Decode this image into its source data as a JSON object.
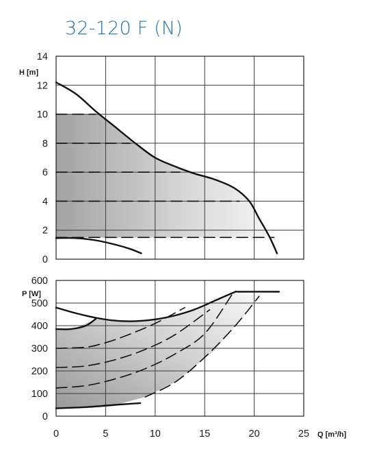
{
  "title": "32-120 F (N)",
  "title_color": "#1b75bb",
  "chart_data": [
    {
      "type": "line",
      "ylabel": "H [m]",
      "xlim": [
        0,
        25
      ],
      "ylim": [
        0,
        14
      ],
      "xticks": [
        0,
        5,
        10,
        15,
        20,
        25
      ],
      "yticks": [
        0,
        2,
        4,
        6,
        8,
        10,
        12,
        14
      ],
      "ytick_labels": [
        "0",
        "2",
        "4",
        "6",
        "8",
        "10",
        "12",
        "14"
      ],
      "grid": true,
      "shaded_region": "operating area",
      "series": [
        {
          "style": "solid",
          "x": [
            0,
            2,
            4,
            6,
            8,
            10,
            12,
            14,
            16,
            18,
            19.5,
            20.5,
            21.5,
            22.3
          ],
          "y": [
            12.2,
            11.4,
            10.2,
            9.1,
            8.0,
            7.0,
            6.4,
            5.9,
            5.5,
            4.9,
            4.0,
            2.8,
            1.6,
            0.4
          ]
        },
        {
          "style": "solid",
          "x": [
            0,
            2,
            4,
            6,
            7.5,
            8.6
          ],
          "y": [
            1.45,
            1.45,
            1.3,
            1.0,
            0.7,
            0.4
          ]
        },
        {
          "style": "dashed",
          "x": [
            0,
            4
          ],
          "y": [
            10,
            10
          ]
        },
        {
          "style": "dashed",
          "x": [
            0,
            7.5
          ],
          "y": [
            8,
            8
          ]
        },
        {
          "style": "dashed",
          "x": [
            0,
            12.5
          ],
          "y": [
            6,
            6
          ]
        },
        {
          "style": "dashed",
          "x": [
            0,
            18.5
          ],
          "y": [
            4,
            4
          ]
        },
        {
          "style": "dashed",
          "x": [
            0,
            22
          ],
          "y": [
            1.5,
            1.5
          ]
        }
      ]
    },
    {
      "type": "line",
      "xlabel": "Q [m³/h]",
      "ylabel": "P [W]",
      "xlim": [
        0,
        25
      ],
      "ylim": [
        0,
        600
      ],
      "xticks": [
        0,
        5,
        10,
        15,
        20,
        25
      ],
      "xtick_labels": [
        "0",
        "5",
        "10",
        "15",
        "20",
        "25"
      ],
      "yticks": [
        0,
        100,
        200,
        300,
        400,
        500,
        600
      ],
      "ytick_labels": [
        "0",
        "100",
        "200",
        "300",
        "400",
        "500",
        "600"
      ],
      "grid": true,
      "shaded_region": "operating area",
      "series": [
        {
          "style": "solid",
          "x": [
            0,
            2,
            4,
            6,
            8,
            10,
            12,
            14,
            16,
            18,
            18.5,
            22.5
          ],
          "y": [
            480,
            455,
            435,
            422,
            420,
            428,
            445,
            472,
            510,
            548,
            550,
            550
          ]
        },
        {
          "style": "solid",
          "x": [
            0,
            3,
            6,
            8.5
          ],
          "y": [
            35,
            40,
            50,
            58
          ]
        },
        {
          "style": "solid",
          "x": [
            0,
            1.5,
            3,
            4
          ],
          "y": [
            385,
            385,
            400,
            430
          ]
        },
        {
          "style": "dashed",
          "x": [
            0,
            3,
            5,
            7,
            10,
            13
          ],
          "y": [
            300,
            305,
            325,
            355,
            410,
            480
          ]
        },
        {
          "style": "dashed",
          "x": [
            0,
            3,
            6,
            9,
            12,
            15.5
          ],
          "y": [
            215,
            222,
            250,
            295,
            360,
            470
          ]
        },
        {
          "style": "dashed",
          "x": [
            0,
            3,
            6,
            9,
            12,
            15,
            17.8
          ],
          "y": [
            125,
            135,
            165,
            210,
            275,
            365,
            540
          ]
        },
        {
          "style": "dashed",
          "x": [
            9,
            12,
            15,
            18,
            20.5
          ],
          "y": [
            85,
            150,
            260,
            395,
            530
          ]
        }
      ]
    }
  ]
}
